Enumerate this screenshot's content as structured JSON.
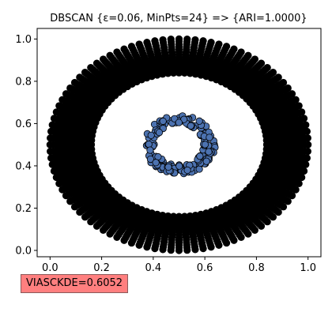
{
  "chart_data": {
    "type": "scatter",
    "title": "DBSCAN {ε=0.06, MinPts=24} => {ARI=1.0000}",
    "xlabel": "",
    "ylabel": "",
    "xlim": [
      -0.05,
      1.05
    ],
    "ylim": [
      -0.03,
      1.05
    ],
    "xticks": [
      "0.0",
      "0.2",
      "0.4",
      "0.6",
      "0.8",
      "1.0"
    ],
    "yticks": [
      "0.0",
      "0.2",
      "0.4",
      "0.6",
      "0.8",
      "1.0"
    ],
    "grid": false,
    "series": [
      {
        "color": "#000000",
        "shape": "ring",
        "center": [
          0.5,
          0.5
        ],
        "inner_radius": 0.34,
        "outer_radius": 0.5,
        "points_per_spoke": 14,
        "spokes": 100
      },
      {
        "color": "#4c72b0",
        "shape": "ring",
        "center": [
          0.5,
          0.5
        ],
        "inner_radius": 0.095,
        "outer_radius": 0.14,
        "points": 180
      }
    ]
  },
  "metric_badge": {
    "text": "VIASCKDE=0.6052",
    "color": "#ff7f7f"
  }
}
